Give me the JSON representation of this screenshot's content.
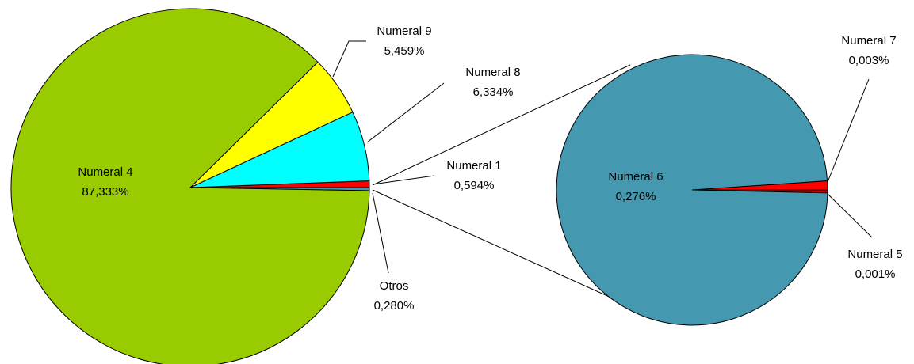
{
  "chart_data": [
    {
      "type": "pie",
      "categories": [
        "Otros",
        "Numeral 1",
        "Numeral 8",
        "Numeral 9",
        "Numeral 4"
      ],
      "values": [
        0.28,
        0.594,
        6.334,
        5.459,
        87.333
      ],
      "value_labels": [
        "0,280%",
        "0,594%",
        "6,334%",
        "5,459%",
        "87,333%"
      ],
      "colors": [
        "#4499b0",
        "#ff0000",
        "#00ffff",
        "#ffff00",
        "#99cc00"
      ]
    },
    {
      "type": "pie",
      "categories": [
        "Numeral 5",
        "Numeral 7",
        "Numeral 6"
      ],
      "values": [
        0.001,
        0.003,
        0.276
      ],
      "value_labels": [
        "0,001%",
        "0,003%",
        "0,276%"
      ],
      "colors": [
        "#cc0000",
        "#ff0000",
        "#4499b0"
      ]
    }
  ]
}
